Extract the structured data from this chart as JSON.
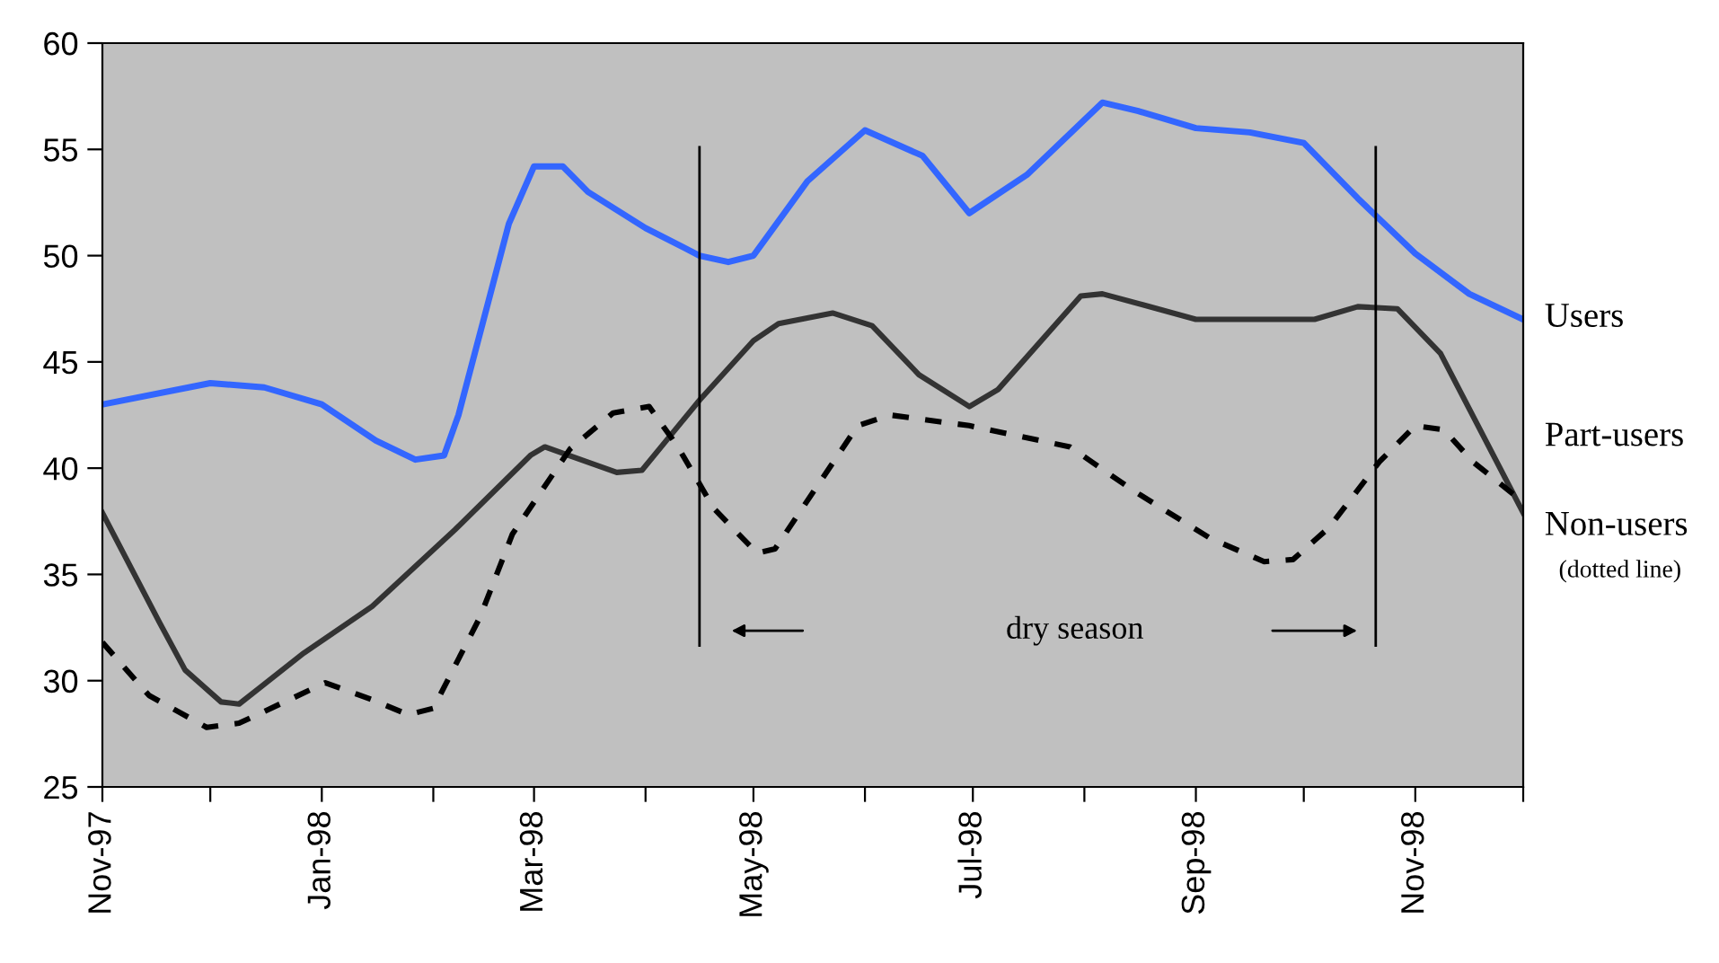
{
  "chart_data": {
    "type": "line",
    "xlim": [
      "1997-11-01",
      "1998-12-01"
    ],
    "xticks": [
      {
        "value": "1997-11-01",
        "label": "Nov-97"
      },
      {
        "value": "1997-12-01",
        "label": null
      },
      {
        "value": "1998-01-01",
        "label": "Jan-98"
      },
      {
        "value": "1998-02-01",
        "label": null
      },
      {
        "value": "1998-03-01",
        "label": "Mar-98"
      },
      {
        "value": "1998-04-01",
        "label": null
      },
      {
        "value": "1998-05-01",
        "label": "May-98"
      },
      {
        "value": "1998-06-01",
        "label": null
      },
      {
        "value": "1998-07-01",
        "label": "Jul-98"
      },
      {
        "value": "1998-08-01",
        "label": null
      },
      {
        "value": "1998-09-01",
        "label": "Sep-98"
      },
      {
        "value": "1998-10-01",
        "label": null
      },
      {
        "value": "1998-11-01",
        "label": "Nov-98"
      },
      {
        "value": "1998-12-01",
        "label": null
      }
    ],
    "ylim": [
      25,
      60
    ],
    "yticks": [
      25,
      30,
      35,
      40,
      45,
      50,
      55,
      60
    ],
    "grid": false,
    "legend": false,
    "marker": "none",
    "series": [
      {
        "name": "Users",
        "color": "#3366ff",
        "line_style": "solid",
        "x": [
          "1997-11-01",
          "1997-12-01",
          "1997-12-16",
          "1998-01-01",
          "1998-01-16",
          "1998-01-27",
          "1998-02-04",
          "1998-02-08",
          "1998-02-15",
          "1998-02-22",
          "1998-03-01",
          "1998-03-09",
          "1998-03-16",
          "1998-04-01",
          "1998-04-16",
          "1998-04-24",
          "1998-05-01",
          "1998-05-16",
          "1998-06-01",
          "1998-06-17",
          "1998-06-30",
          "1998-07-16",
          "1998-08-06",
          "1998-08-16",
          "1998-09-01",
          "1998-09-16",
          "1998-10-01",
          "1998-10-16",
          "1998-11-01",
          "1998-11-16",
          "1998-12-01"
        ],
        "values": [
          43,
          44,
          43.8,
          43,
          41.3,
          40.4,
          40.6,
          42.5,
          47,
          51.5,
          54.2,
          54.2,
          53,
          51.3,
          50,
          49.7,
          50,
          53.5,
          55.9,
          54.7,
          52,
          53.8,
          57.2,
          56.8,
          56,
          55.8,
          55.3,
          52.7,
          50.1,
          48.2,
          47
        ]
      },
      {
        "name": "Part-users",
        "color": "#333333",
        "line_style": "solid",
        "x": [
          "1997-11-01",
          "1997-11-17",
          "1997-11-24",
          "1997-12-04",
          "1997-12-09",
          "1997-12-27",
          "1998-01-15",
          "1998-02-07",
          "1998-02-28",
          "1998-03-04",
          "1998-03-24",
          "1998-03-31",
          "1998-04-16",
          "1998-05-01",
          "1998-05-08",
          "1998-05-23",
          "1998-06-03",
          "1998-06-16",
          "1998-06-30",
          "1998-07-08",
          "1998-07-31",
          "1998-08-06",
          "1998-08-17",
          "1998-09-01",
          "1998-10-04",
          "1998-10-16",
          "1998-10-27",
          "1998-11-08",
          "1998-12-01"
        ],
        "values": [
          37.9,
          32.7,
          30.5,
          29,
          28.9,
          31.3,
          33.5,
          37.1,
          40.6,
          41,
          39.8,
          39.9,
          43.2,
          46,
          46.8,
          47.3,
          46.7,
          44.4,
          42.9,
          43.7,
          48.1,
          48.2,
          47.7,
          47,
          47,
          47.6,
          47.5,
          45.4,
          37.9
        ]
      },
      {
        "name": "Non-users",
        "color": "#000000",
        "line_style": "dashed",
        "x": [
          "1997-11-01",
          "1997-11-14",
          "1997-11-30",
          "1997-12-09",
          "1998-01-02",
          "1998-01-15",
          "1998-01-25",
          "1998-02-01",
          "1998-02-14",
          "1998-02-23",
          "1998-03-11",
          "1998-03-23",
          "1998-04-02",
          "1998-04-10",
          "1998-04-20",
          "1998-05-02",
          "1998-05-07",
          "1998-05-30",
          "1998-06-08",
          "1998-06-30",
          "1998-07-28",
          "1998-08-15",
          "1998-09-05",
          "1998-09-20",
          "1998-09-28",
          "1998-10-08",
          "1998-10-22",
          "1998-11-01",
          "1998-11-09",
          "1998-11-17",
          "1998-12-01"
        ],
        "values": [
          31.8,
          29.3,
          27.8,
          28,
          29.9,
          29.1,
          28.4,
          28.7,
          33,
          36.9,
          40.9,
          42.6,
          42.9,
          41,
          38.1,
          36,
          36.2,
          42,
          42.5,
          42,
          41,
          38.9,
          36.7,
          35.6,
          35.7,
          37.2,
          40.3,
          42,
          41.8,
          40.3,
          38.4
        ]
      }
    ],
    "ref_lines": [
      {
        "axis": "x",
        "value": "1998-04-16",
        "color": "#000000"
      },
      {
        "axis": "x",
        "value": "1998-10-21",
        "color": "#000000"
      }
    ],
    "annotations": [
      "dry season",
      "(dotted line)"
    ]
  }
}
